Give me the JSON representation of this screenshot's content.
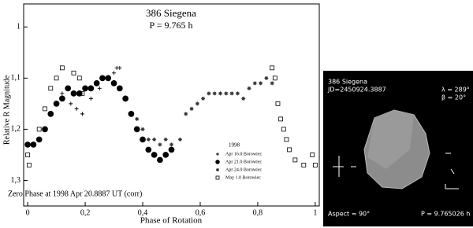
{
  "chart_data": {
    "type": "scatter",
    "title": "386 Siegena",
    "subtitle": "P = 9.765 h",
    "x_label": "Phase of Rotation",
    "y_label": "Relative R Magnitude",
    "annotation": "Zero Phase at 1998 Apr 20.8887 UT (corr)",
    "legend_title": "1998",
    "legend": "lower-right",
    "xlim": [
      -0.014,
      1.014
    ],
    "ylim": [
      1.35,
      0.955
    ],
    "xticks": [
      0,
      {
        "value": 0.2,
        "label": "0,2"
      },
      {
        "value": 0.4,
        "label": "0,4"
      },
      {
        "value": 0.6,
        "label": "0,6"
      },
      {
        "value": 0.8,
        "label": "0,8"
      },
      1
    ],
    "yticks": [
      1,
      {
        "value": 1.1,
        "label": "1,1"
      },
      {
        "value": 1.2,
        "label": "1,2"
      },
      {
        "value": 1.3,
        "label": "1,3"
      }
    ],
    "series": [
      {
        "name": "Apr 16.0 Borowiec",
        "marker": "plus",
        "color": "#000000",
        "x": [
          0.12,
          0.15,
          0.17,
          0.19,
          0.22,
          0.25,
          0.28,
          0.3,
          0.31,
          0.32
        ],
        "values": [
          1.13,
          1.15,
          1.16,
          1.17,
          1.14,
          1.12,
          1.1,
          1.09,
          1.08,
          1.08
        ]
      },
      {
        "name": "Apr 21.0 Borowiec",
        "marker": "circle",
        "color": "#000000",
        "x": [
          0.0,
          0.02,
          0.04,
          0.06,
          0.08,
          0.1,
          0.12,
          0.14,
          0.16,
          0.18,
          0.2,
          0.22,
          0.24,
          0.26,
          0.28,
          0.3,
          0.32,
          0.34,
          0.36,
          0.38,
          0.4,
          0.42,
          0.44,
          0.46,
          0.48,
          0.5
        ],
        "values": [
          1.23,
          1.23,
          1.22,
          1.2,
          1.17,
          1.15,
          1.14,
          1.12,
          1.13,
          1.13,
          1.12,
          1.12,
          1.11,
          1.1,
          1.1,
          1.11,
          1.12,
          1.14,
          1.17,
          1.2,
          1.22,
          1.24,
          1.25,
          1.26,
          1.25,
          1.24
        ]
      },
      {
        "name": "Apr 24.0 Borowiec",
        "marker": "star",
        "color": "#333333",
        "x": [
          0.38,
          0.4,
          0.42,
          0.44,
          0.46,
          0.48,
          0.5,
          0.53,
          0.55,
          0.57,
          0.59,
          0.61,
          0.63,
          0.65,
          0.67,
          0.69,
          0.71,
          0.73,
          0.75,
          0.77,
          0.79,
          0.81,
          0.83,
          0.85
        ],
        "values": [
          1.18,
          1.2,
          1.22,
          1.22,
          1.23,
          1.22,
          1.23,
          1.22,
          1.17,
          1.16,
          1.15,
          1.14,
          1.13,
          1.13,
          1.13,
          1.13,
          1.13,
          1.13,
          1.14,
          1.12,
          1.11,
          1.11,
          1.1,
          1.11
        ]
      },
      {
        "name": "May 1.0 Borowiec",
        "marker": "square",
        "color": "#000000",
        "x": [
          0.0,
          0.005,
          0.02,
          0.04,
          0.06,
          0.08,
          0.1,
          0.12,
          0.16,
          0.18,
          0.19,
          0.85,
          0.86,
          0.87,
          0.88,
          0.89,
          0.9,
          0.91,
          0.93,
          0.96,
          0.99,
          1.0
        ],
        "values": [
          1.25,
          1.27,
          1.23,
          1.2,
          1.16,
          1.12,
          1.1,
          1.08,
          1.09,
          1.1,
          1.13,
          1.08,
          1.1,
          1.15,
          1.18,
          1.2,
          1.22,
          1.24,
          1.26,
          1.27,
          1.25,
          1.27
        ]
      }
    ]
  },
  "model_panel": {
    "name": "386 Siegena",
    "jd": "JD=2450924.3887",
    "lambda": "λ = 289°",
    "beta": "β = 20°",
    "aspect": "Aspect = 90°",
    "period": "P = 9.765026 h"
  }
}
